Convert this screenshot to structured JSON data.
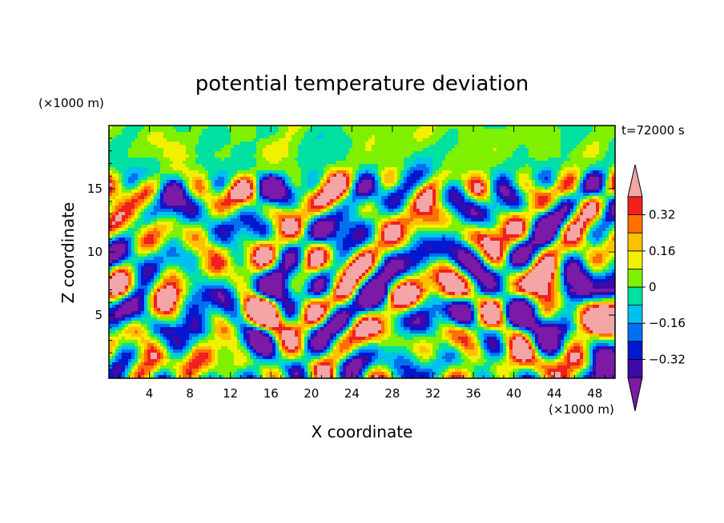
{
  "chart_data": {
    "type": "heatmap",
    "title": "potential temperature deviation",
    "xlabel": "X coordinate",
    "ylabel": "Z coordinate",
    "x_unit": "(×1000 m)",
    "y_unit": "(×1000 m)",
    "time_label": "t=72000 s",
    "xlim": [
      0,
      50
    ],
    "ylim": [
      0,
      20
    ],
    "x_ticks": [
      4,
      8,
      12,
      16,
      20,
      24,
      28,
      32,
      36,
      40,
      44,
      48
    ],
    "x_tick_labels": [
      "4",
      "8",
      "12",
      "16",
      "20",
      "24",
      "28",
      "32",
      "36",
      "40",
      "44",
      "48"
    ],
    "y_ticks": [
      5,
      10,
      15
    ],
    "y_tick_labels": [
      "5",
      "10",
      "15"
    ],
    "colorbar": {
      "levels": [
        -0.4,
        -0.32,
        -0.24,
        -0.16,
        -0.08,
        0,
        0.08,
        0.16,
        0.24,
        0.32,
        0.4
      ],
      "tick_values": [
        0.32,
        0.16,
        0,
        -0.16,
        -0.32
      ],
      "tick_labels": [
        "0.32",
        "0.16",
        "0",
        "−0.16",
        "−0.32"
      ],
      "over_color": "#f4a6a6",
      "under_color": "#7a1aa6",
      "colors": [
        "#3d0aa8",
        "#0018d0",
        "#0070f0",
        "#00c0f0",
        "#00e0a0",
        "#7ef000",
        "#f0f000",
        "#ffc000",
        "#ff7000",
        "#f02020"
      ]
    },
    "field_note": "2D deviation field, structured layers: turbulent band near z≈4–7 km, larger eddies aloft, near-zero values above ~17 km"
  }
}
